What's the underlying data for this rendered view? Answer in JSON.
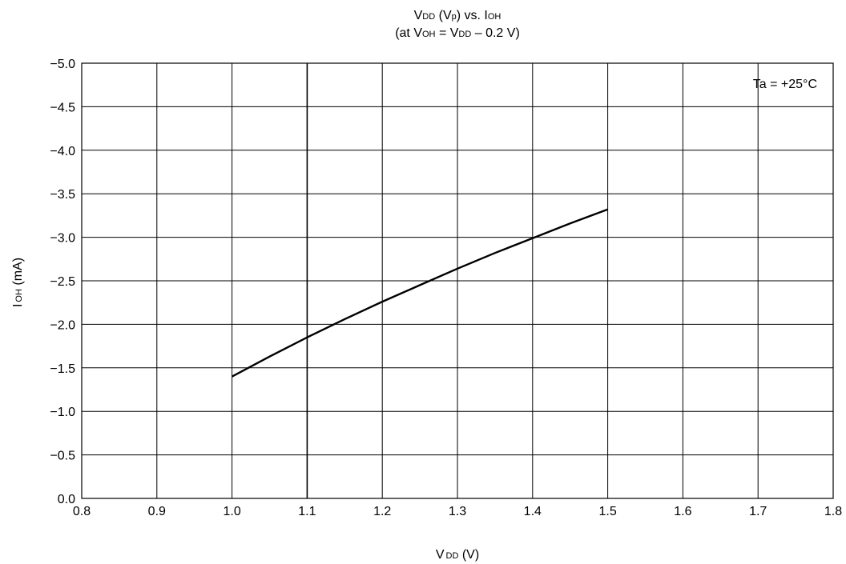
{
  "chart_data": {
    "type": "line",
    "title": {
      "line1": {
        "a": "V",
        "a_sub": "DD",
        "b": " (V",
        "b_sub": "p",
        "c": ") vs. I",
        "c_sub": "OH"
      },
      "line2": {
        "a": "(at V",
        "a_sub": "OH",
        "b": " = V",
        "b_sub": "DD",
        "c": " – 0.2 V)"
      }
    },
    "xlabel": {
      "main": "V",
      "sub": "DD",
      "unit": " (V)"
    },
    "ylabel": {
      "main": "I",
      "sub": "OH",
      "unit": " (mA)"
    },
    "xlim": [
      0.8,
      1.8
    ],
    "ylim": [
      0.0,
      -5.0
    ],
    "x_ticks": [
      "0.8",
      "0.9",
      "1.0",
      "1.1",
      "1.2",
      "1.3",
      "1.4",
      "1.5",
      "1.6",
      "1.7",
      "1.8"
    ],
    "y_ticks": [
      "0.0",
      "−0.5",
      "−1.0",
      "−1.5",
      "−2.0",
      "−2.5",
      "−3.0",
      "−3.5",
      "−4.0",
      "−4.5",
      "−5.0"
    ],
    "grid": true,
    "annotation": "Ta = +25°C",
    "series": [
      {
        "x": [
          1.0,
          1.05,
          1.1,
          1.15,
          1.2,
          1.25,
          1.3,
          1.35,
          1.4,
          1.45,
          1.5
        ],
        "y": [
          -1.4,
          -1.63,
          -1.85,
          -2.06,
          -2.26,
          -2.45,
          -2.64,
          -2.82,
          -2.99,
          -3.16,
          -3.32
        ]
      }
    ]
  }
}
